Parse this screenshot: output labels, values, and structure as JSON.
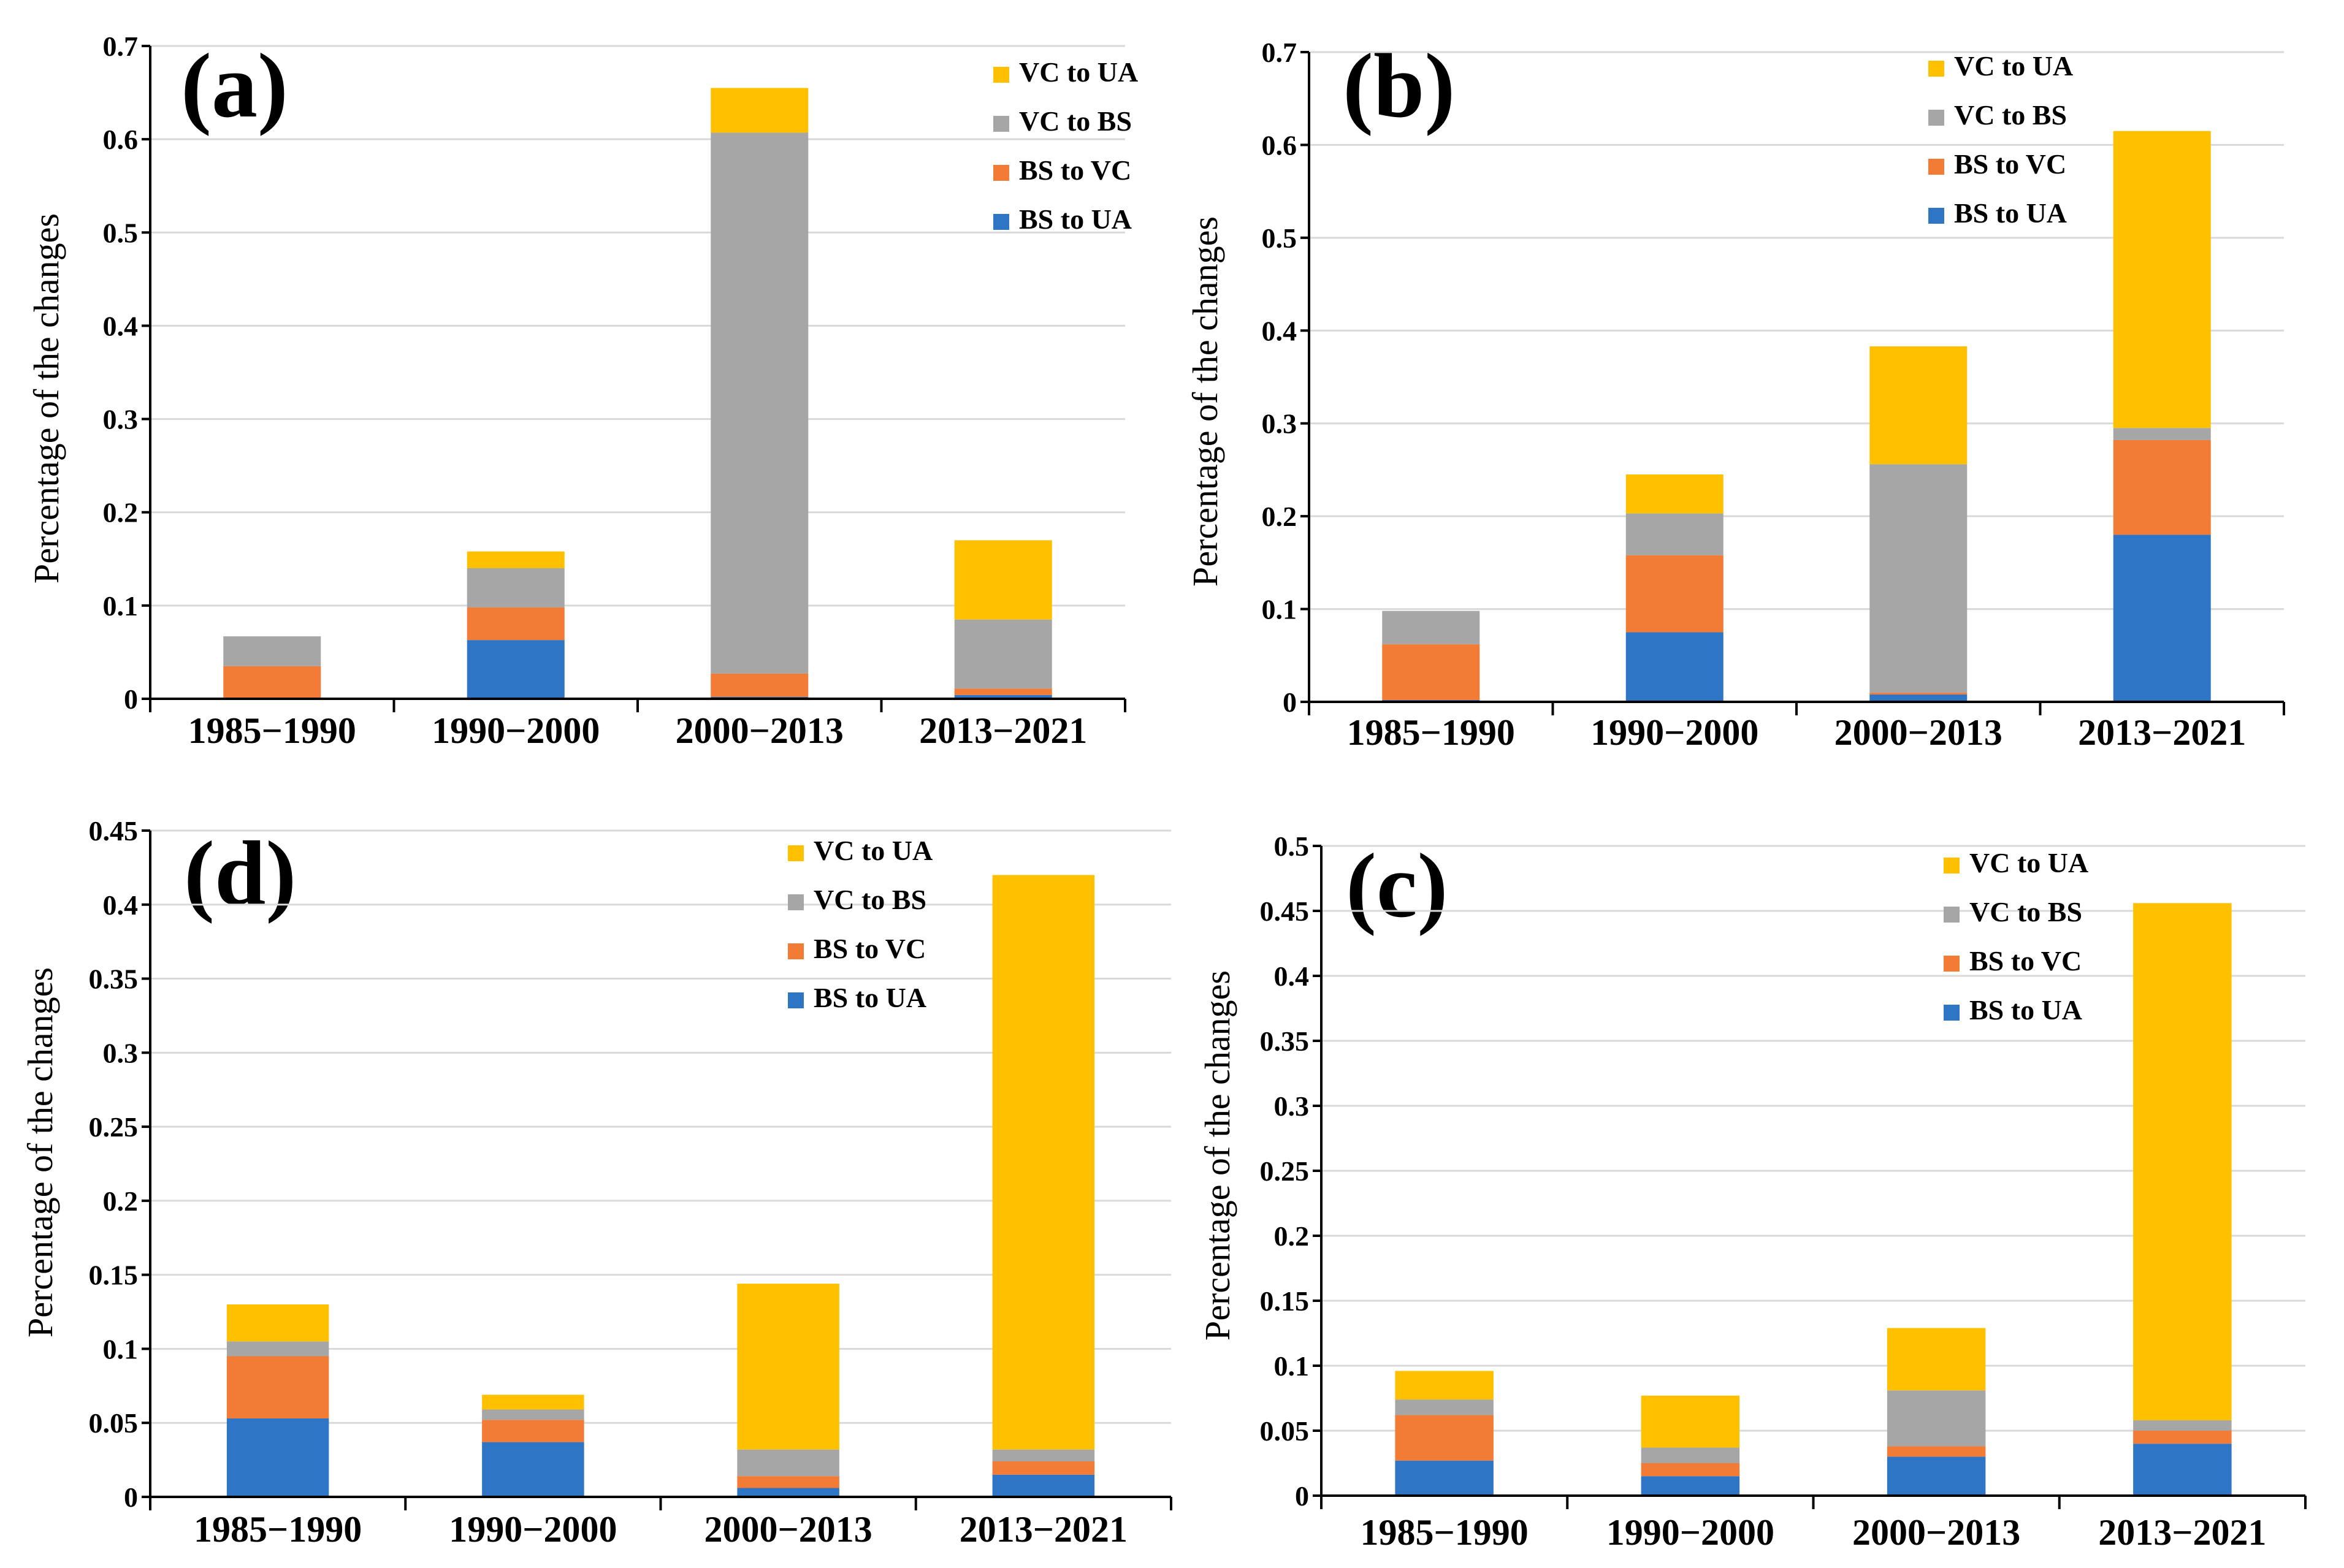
{
  "colors": {
    "BS to UA": "#2E75C6",
    "BS to VC": "#F27B35",
    "VC to BS": "#A6A6A6",
    "VC to UA": "#FFC000",
    "grid": "#D9D9D9",
    "axis": "#000000"
  },
  "chart_data": [
    {
      "type": "bar",
      "panel": "(a)",
      "ylabel": "Percentage of the changes",
      "xlabel": "",
      "ylim": [
        0,
        0.7
      ],
      "yticks": [
        0,
        0.1,
        0.2,
        0.3,
        0.4,
        0.5,
        0.6,
        0.7
      ],
      "ytick_labels": [
        "0",
        "0.1",
        "0.2",
        "0.3",
        "0.4",
        "0.5",
        "0.6",
        "0.7"
      ],
      "grid": true,
      "legend": [
        "VC to UA",
        "VC to BS",
        "BS to VC",
        "BS to UA"
      ],
      "categories": [
        "1985−1990",
        "1990−2000",
        "2000−2013",
        "2013−2021"
      ],
      "series": [
        {
          "name": "BS to UA",
          "values": [
            0.0,
            0.063,
            0.002,
            0.004
          ]
        },
        {
          "name": "BS to VC",
          "values": [
            0.035,
            0.035,
            0.025,
            0.007
          ]
        },
        {
          "name": "VC to BS",
          "values": [
            0.032,
            0.042,
            0.58,
            0.074
          ]
        },
        {
          "name": "VC to UA",
          "values": [
            0.0,
            0.018,
            0.048,
            0.085
          ]
        }
      ]
    },
    {
      "type": "bar",
      "panel": "(b)",
      "ylabel": "Percentage of the changes",
      "xlabel": "",
      "ylim": [
        0,
        0.7
      ],
      "yticks": [
        0,
        0.1,
        0.2,
        0.3,
        0.4,
        0.5,
        0.6,
        0.7
      ],
      "ytick_labels": [
        "0",
        "0.1",
        "0.2",
        "0.3",
        "0.4",
        "0.5",
        "0.6",
        "0.7"
      ],
      "grid": true,
      "legend": [
        "VC to UA",
        "VC to BS",
        "BS to VC",
        "BS to UA"
      ],
      "categories": [
        "1985−1990",
        "1990−2000",
        "2000−2013",
        "2013−2021"
      ],
      "series": [
        {
          "name": "BS to UA",
          "values": [
            0.002,
            0.075,
            0.008,
            0.18
          ]
        },
        {
          "name": "BS to VC",
          "values": [
            0.06,
            0.083,
            0.002,
            0.102
          ]
        },
        {
          "name": "VC to BS",
          "values": [
            0.036,
            0.045,
            0.246,
            0.013
          ]
        },
        {
          "name": "VC to UA",
          "values": [
            0.0,
            0.042,
            0.127,
            0.32
          ]
        }
      ]
    },
    {
      "type": "bar",
      "panel": "(d)",
      "ylabel": "Percentage of the changes",
      "xlabel": "",
      "ylim": [
        0,
        0.45
      ],
      "yticks": [
        0,
        0.05,
        0.1,
        0.15,
        0.2,
        0.25,
        0.3,
        0.35,
        0.4,
        0.45
      ],
      "ytick_labels": [
        "0",
        "0.05",
        "0.1",
        "0.15",
        "0.2",
        "0.25",
        "0.3",
        "0.35",
        "0.4",
        "0.45"
      ],
      "grid": true,
      "legend": [
        "VC to UA",
        "VC to BS",
        "BS to VC",
        "BS to UA"
      ],
      "categories": [
        "1985−1990",
        "1990−2000",
        "2000−2013",
        "2013−2021"
      ],
      "series": [
        {
          "name": "BS to UA",
          "values": [
            0.053,
            0.037,
            0.006,
            0.015
          ]
        },
        {
          "name": "BS to VC",
          "values": [
            0.042,
            0.015,
            0.008,
            0.009
          ]
        },
        {
          "name": "VC to BS",
          "values": [
            0.01,
            0.007,
            0.018,
            0.008
          ]
        },
        {
          "name": "VC to UA",
          "values": [
            0.025,
            0.01,
            0.112,
            0.388
          ]
        }
      ]
    },
    {
      "type": "bar",
      "panel": "(c)",
      "ylabel": "Percentage of the changes",
      "xlabel": "",
      "ylim": [
        0,
        0.5
      ],
      "yticks": [
        0,
        0.05,
        0.1,
        0.15,
        0.2,
        0.25,
        0.3,
        0.35,
        0.4,
        0.45,
        0.5
      ],
      "ytick_labels": [
        "0",
        "0.05",
        "0.1",
        "0.15",
        "0.2",
        "0.25",
        "0.3",
        "0.35",
        "0.4",
        "0.45",
        "0.5"
      ],
      "grid": true,
      "legend": [
        "VC to UA",
        "VC to BS",
        "BS to VC",
        "BS to UA"
      ],
      "categories": [
        "1985−1990",
        "1990−2000",
        "2000−2013",
        "2013−2021"
      ],
      "series": [
        {
          "name": "BS to UA",
          "values": [
            0.027,
            0.015,
            0.03,
            0.04
          ]
        },
        {
          "name": "BS to VC",
          "values": [
            0.035,
            0.01,
            0.008,
            0.01
          ]
        },
        {
          "name": "VC to BS",
          "values": [
            0.012,
            0.012,
            0.043,
            0.008
          ]
        },
        {
          "name": "VC to UA",
          "values": [
            0.022,
            0.04,
            0.048,
            0.398
          ]
        }
      ]
    }
  ]
}
